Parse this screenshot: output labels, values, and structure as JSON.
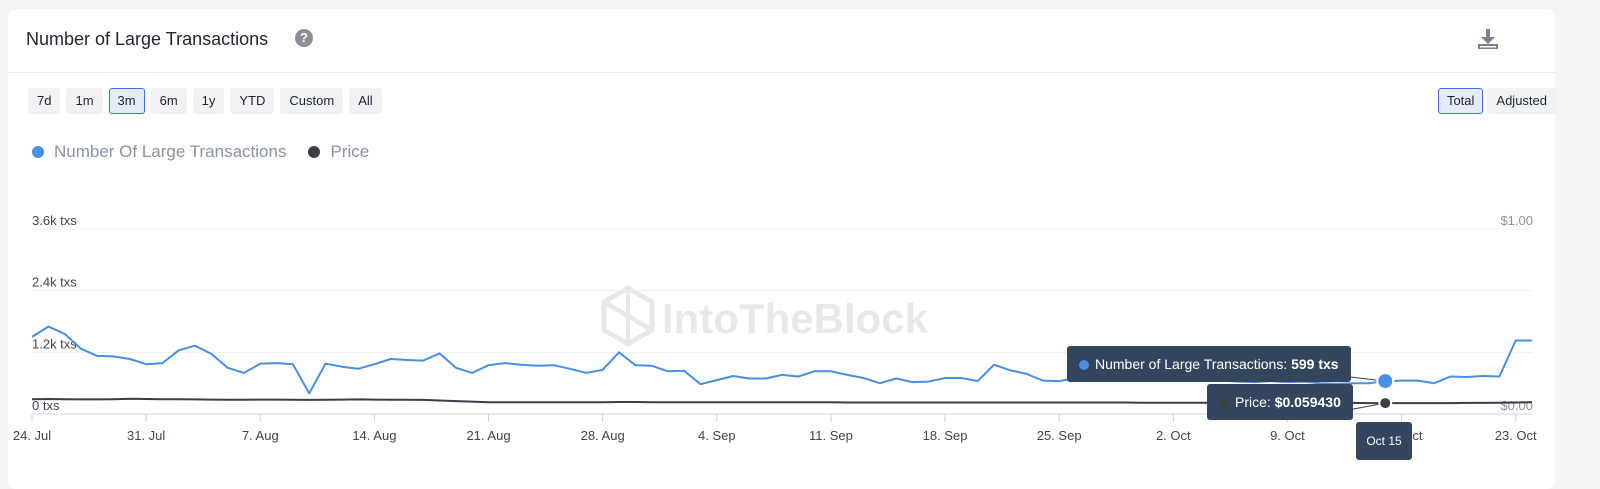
{
  "title": "Number of Large Transactions",
  "range_buttons": [
    "7d",
    "1m",
    "3m",
    "6m",
    "1y",
    "YTD",
    "Custom",
    "All"
  ],
  "range_active": "3m",
  "mode_buttons": [
    "Total",
    "Adjusted"
  ],
  "mode_active": "Total",
  "watermark": "IntoTheBlock",
  "colors": {
    "series_txs": "#4a8fe2",
    "series_price": "#3a3f47",
    "tooltip_bg": "#34465e"
  },
  "tooltip": {
    "txs_label": "Number of Large Transactions:",
    "txs_value": "599 txs",
    "price_label": "Price:",
    "price_value": "$0.059430",
    "date": "Oct 15"
  },
  "chart_data": {
    "type": "line",
    "x_start": "2023-07-24",
    "x_end": "2023-10-24",
    "x_ticks": [
      "24. Jul",
      "31. Jul",
      "7. Aug",
      "14. Aug",
      "21. Aug",
      "28. Aug",
      "4. Sep",
      "11. Sep",
      "18. Sep",
      "25. Sep",
      "2. Oct",
      "9. Oct",
      "16. Oct",
      "23. Oct"
    ],
    "y_left": {
      "ticks": [
        "0 txs",
        "1.2k txs",
        "2.4k txs",
        "3.6k txs"
      ],
      "range": [
        0,
        3600
      ],
      "unit": "txs"
    },
    "y_right": {
      "ticks": [
        "$0.00",
        "$1.00"
      ],
      "range": [
        0,
        1
      ]
    },
    "grid": true,
    "legend_position": "top-left",
    "series": [
      {
        "name": "Number Of Large Transactions",
        "axis": "left",
        "color": "#4a8fe2",
        "values": [
          1500,
          1700,
          1560,
          1270,
          1130,
          1120,
          1070,
          970,
          990,
          1240,
          1330,
          1170,
          900,
          800,
          980,
          990,
          970,
          400,
          980,
          920,
          880,
          970,
          1070,
          1050,
          1040,
          1180,
          900,
          800,
          950,
          990,
          960,
          940,
          950,
          880,
          800,
          860,
          1200,
          950,
          940,
          830,
          840,
          580,
          660,
          740,
          690,
          690,
          760,
          730,
          830,
          830,
          760,
          700,
          600,
          690,
          620,
          630,
          700,
          700,
          640,
          960,
          850,
          780,
          650,
          640,
          700,
          780,
          730,
          740,
          720,
          720,
          690,
          650,
          640,
          650,
          630,
          620,
          640,
          620,
          630,
          600,
          590,
          600,
          599,
          640,
          650,
          650,
          600,
          730,
          720,
          740,
          730,
          1430,
          1430
        ]
      },
      {
        "name": "Price",
        "axis": "right",
        "color": "#3a3f47",
        "values": [
          0.08,
          0.081,
          0.08,
          0.079,
          0.079,
          0.08,
          0.082,
          0.081,
          0.08,
          0.08,
          0.079,
          0.078,
          0.077,
          0.077,
          0.078,
          0.078,
          0.077,
          0.076,
          0.077,
          0.078,
          0.079,
          0.078,
          0.077,
          0.077,
          0.076,
          0.073,
          0.07,
          0.067,
          0.064,
          0.063,
          0.064,
          0.064,
          0.063,
          0.063,
          0.064,
          0.064,
          0.065,
          0.065,
          0.064,
          0.064,
          0.064,
          0.064,
          0.063,
          0.063,
          0.063,
          0.063,
          0.063,
          0.063,
          0.063,
          0.063,
          0.062,
          0.062,
          0.062,
          0.062,
          0.062,
          0.062,
          0.062,
          0.062,
          0.062,
          0.062,
          0.062,
          0.062,
          0.062,
          0.062,
          0.062,
          0.062,
          0.062,
          0.062,
          0.061,
          0.061,
          0.061,
          0.061,
          0.061,
          0.061,
          0.061,
          0.061,
          0.061,
          0.061,
          0.061,
          0.06,
          0.06,
          0.06,
          0.059,
          0.059,
          0.059,
          0.059,
          0.059,
          0.059,
          0.06,
          0.06,
          0.061,
          0.062,
          0.063
        ]
      }
    ]
  }
}
